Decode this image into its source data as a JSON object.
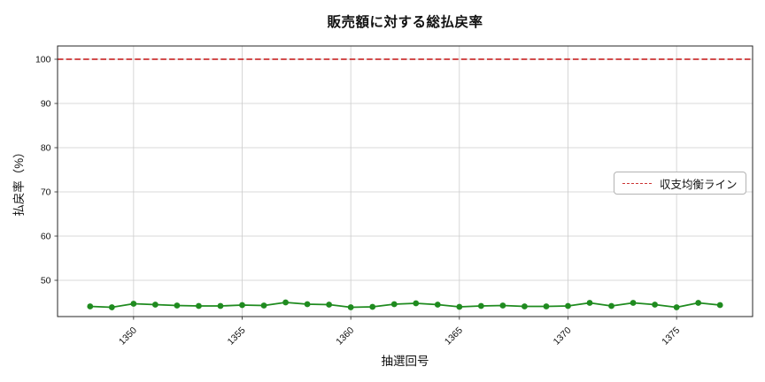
{
  "chart_data": {
    "type": "line",
    "title": "販売額に対する総払戻率",
    "xlabel": "抽選回号",
    "ylabel": "払戻率（%）",
    "x": [
      1348,
      1349,
      1350,
      1351,
      1352,
      1353,
      1354,
      1355,
      1356,
      1357,
      1358,
      1359,
      1360,
      1361,
      1362,
      1363,
      1364,
      1365,
      1366,
      1367,
      1368,
      1369,
      1370,
      1371,
      1372,
      1373,
      1374,
      1375,
      1376,
      1377
    ],
    "series": [
      {
        "name": "総払戻率",
        "color": "#1f8b1f",
        "marker": "circle",
        "values": [
          44.1,
          43.9,
          44.7,
          44.5,
          44.3,
          44.2,
          44.2,
          44.4,
          44.3,
          45.0,
          44.6,
          44.5,
          43.9,
          44.0,
          44.6,
          44.8,
          44.5,
          44.0,
          44.2,
          44.3,
          44.1,
          44.1,
          44.2,
          44.9,
          44.2,
          44.9,
          44.5,
          43.9,
          44.9,
          44.4
        ]
      }
    ],
    "reference_line": {
      "label": "収支均衡ライン",
      "value": 100,
      "color": "#cc3333",
      "style": "dashed"
    },
    "xticks": [
      1350,
      1355,
      1360,
      1365,
      1370,
      1375
    ],
    "yticks": [
      50,
      60,
      70,
      80,
      90,
      100
    ],
    "xlim": [
      1346.5,
      1378.5
    ],
    "ylim": [
      41.8,
      103
    ],
    "xtick_rotation": 45,
    "grid": true,
    "legend": {
      "position": "center-right",
      "entries": [
        "収支均衡ライン"
      ]
    },
    "grid_color": "#cccccc",
    "spine_color": "#262626"
  }
}
